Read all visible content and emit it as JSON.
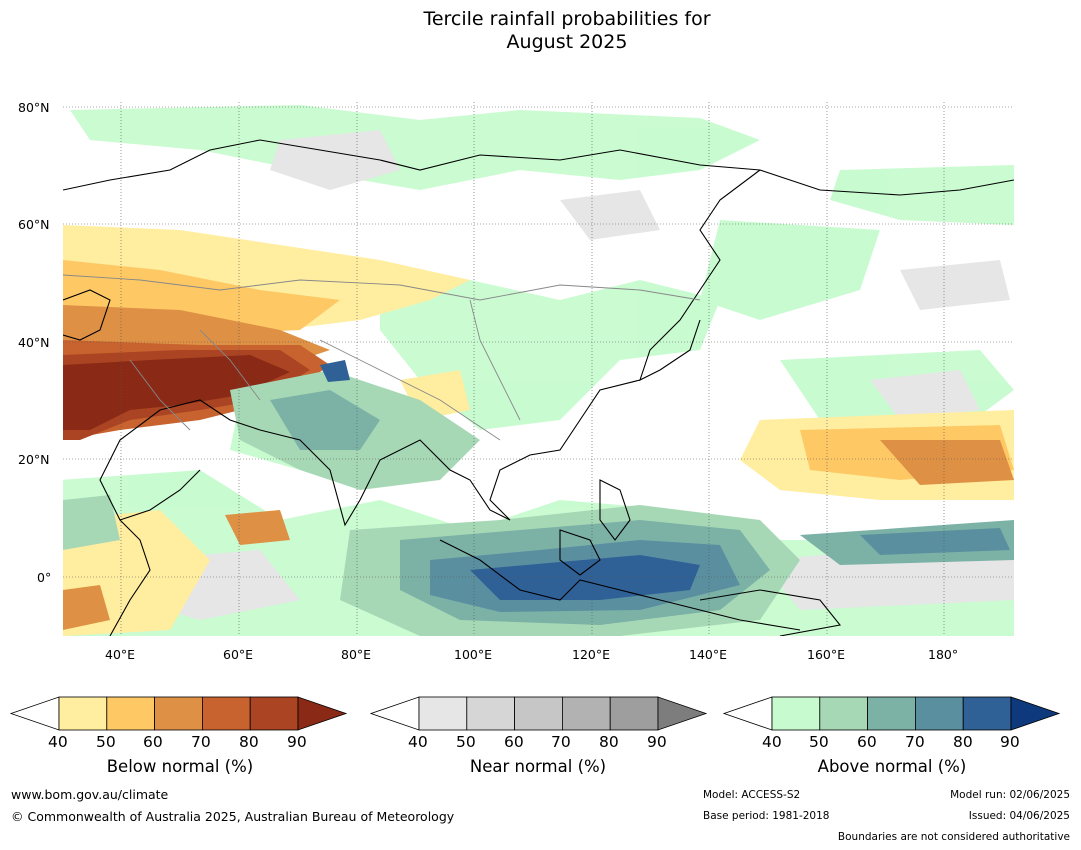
{
  "title_line1": "Tercile rainfall probabilities for",
  "title_line2": "August 2025",
  "map": {
    "lat_labels": [
      "80°N",
      "60°N",
      "40°N",
      "20°N",
      "0°"
    ],
    "lon_labels": [
      "40°E",
      "60°E",
      "80°E",
      "100°E",
      "120°E",
      "140°E",
      "160°E",
      "180°"
    ]
  },
  "colorbars": [
    {
      "label": "Below normal (%)",
      "ticks": [
        "40",
        "50",
        "60",
        "70",
        "80",
        "90"
      ],
      "colors": [
        "#ffeda0",
        "#fec965",
        "#de9145",
        "#c8622e",
        "#aa4422",
        "#8a2a16"
      ]
    },
    {
      "label": "Near normal (%)",
      "ticks": [
        "40",
        "50",
        "60",
        "70",
        "80",
        "90"
      ],
      "colors": [
        "#e6e6e6",
        "#d6d6d6",
        "#c6c6c6",
        "#b2b2b2",
        "#9e9e9e",
        "#7d7d7d"
      ]
    },
    {
      "label": "Above normal (%)",
      "ticks": [
        "40",
        "50",
        "60",
        "70",
        "80",
        "90"
      ],
      "colors": [
        "#c7fbcf",
        "#a7d8b6",
        "#7cb2a6",
        "#5a8fa0",
        "#2f6197",
        "#0e3a7d"
      ]
    }
  ],
  "footer": {
    "website": "www.bom.gov.au/climate",
    "copyright": "© Commonwealth of Australia 2025, Australian Bureau of Meteorology",
    "model": "Model: ACCESS-S2",
    "base_period": "Base period: 1981-2018",
    "model_run": "Model run: 02/06/2025",
    "issued": "Issued: 04/06/2025",
    "disclaimer": "Boundaries are not considered authoritative"
  }
}
